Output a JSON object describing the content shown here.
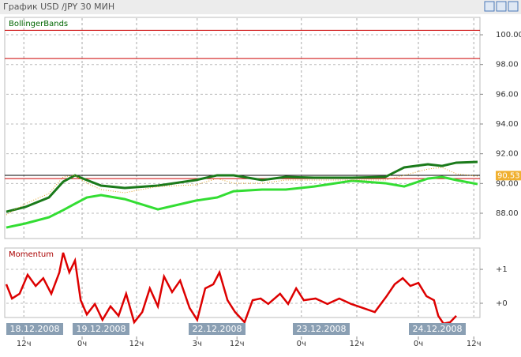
{
  "window": {
    "title": "График USD /JPY  30 МИН"
  },
  "chart_data": [
    {
      "type": "line",
      "title": "BollingerBands",
      "x": [
        0,
        4,
        9,
        12,
        14.5,
        17,
        20,
        25,
        32,
        40,
        44.5,
        48,
        54,
        59,
        65,
        73,
        80,
        84,
        89,
        92,
        95,
        99.5
      ],
      "series": [
        {
          "color": "#1a7a1a",
          "values": [
            88.1,
            88.42,
            89.06,
            90.12,
            90.55,
            90.23,
            89.86,
            89.7,
            89.86,
            90.23,
            90.55,
            90.55,
            90.23,
            90.44,
            90.39,
            90.39,
            90.44,
            91.08,
            91.29,
            91.18,
            91.4,
            91.45
          ]
        },
        {
          "color": "#33dd33",
          "values": [
            87.04,
            87.31,
            87.73,
            88.21,
            88.64,
            89.06,
            89.22,
            88.95,
            88.26,
            88.85,
            89.06,
            89.48,
            89.59,
            89.59,
            89.8,
            90.18,
            90.02,
            89.8,
            90.33,
            90.44,
            90.23,
            89.96
          ]
        },
        {
          "color": "#e0a020",
          "values": [
            87.89,
            88.64,
            89.33,
            90.44,
            90.55,
            90.02,
            89.59,
            89.38,
            89.8,
            89.91,
            90.33,
            90.02,
            90.02,
            90.23,
            90.23,
            90.23,
            90.23,
            90.55,
            90.97,
            91.08,
            90.65,
            90.49
          ]
        }
      ],
      "xlim": [
        0,
        100
      ],
      "ylim": [
        86.3,
        101.17
      ],
      "yticks": [
        {
          "value": 88,
          "label": "88.00"
        },
        {
          "value": 90,
          "label": "90.00"
        },
        {
          "value": 92,
          "label": "92.00"
        },
        {
          "value": 94,
          "label": "94.00"
        },
        {
          "value": 96,
          "label": "96.00"
        },
        {
          "value": 98,
          "label": "98.00"
        },
        {
          "value": 100,
          "label": "100.00"
        }
      ],
      "levels": [
        {
          "value": 100.3,
          "color": "#cc0000"
        },
        {
          "value": 98.4,
          "color": "#cc0000"
        },
        {
          "value": 90.55,
          "color": "#000000"
        },
        {
          "value": 90.33,
          "color": "#cc0000"
        }
      ],
      "last_value": 90.53,
      "grid": true
    },
    {
      "type": "line",
      "title": "Momentum",
      "x": [
        0,
        1.2,
        2.8,
        4.5,
        6.2,
        7.8,
        9.5,
        11.2,
        12,
        13.3,
        14.5,
        15.7,
        17,
        18.7,
        20.3,
        22,
        23.7,
        25.3,
        27,
        28.7,
        30.3,
        32,
        33.3,
        35,
        36.7,
        38.7,
        40.3,
        42,
        43.7,
        45,
        46.7,
        48.3,
        50.3,
        52,
        53.7,
        55.3,
        57.8,
        59.5,
        61.2,
        62.8,
        65.3,
        67.8,
        70.3,
        72.8,
        75.3,
        77.8,
        80.3,
        82,
        83.7,
        85.3,
        87,
        88.7,
        90.3,
        91.2,
        92.3,
        93.7,
        95
      ],
      "series": [
        {
          "color": "#dd0000",
          "values": [
            0.56,
            0.14,
            0.28,
            0.84,
            0.51,
            0.74,
            0.28,
            0.91,
            1.49,
            0.91,
            1.26,
            0.09,
            -0.33,
            -0.02,
            -0.49,
            -0.09,
            -0.37,
            0.28,
            -0.56,
            -0.26,
            0.44,
            -0.09,
            0.79,
            0.33,
            0.67,
            -0.14,
            -0.49,
            0.44,
            0.56,
            0.91,
            0.09,
            -0.26,
            -0.56,
            0.09,
            0.14,
            -0.02,
            0.28,
            -0.02,
            0.44,
            0.09,
            0.14,
            -0.02,
            0.14,
            -0.02,
            -0.14,
            -0.26,
            0.21,
            0.56,
            0.74,
            0.51,
            0.6,
            0.21,
            0.09,
            -0.37,
            -0.6,
            -0.56,
            -0.37
          ]
        }
      ],
      "xlim": [
        0,
        100
      ],
      "ylim": [
        -0.42,
        1.63
      ],
      "yticks": [
        {
          "value": 1,
          "label": "+1"
        },
        {
          "value": 0,
          "label": "+0"
        }
      ],
      "xticks": [
        {
          "value": 3.7,
          "label": "12ч"
        },
        {
          "value": 16,
          "label": "0ч"
        },
        {
          "value": 27.5,
          "label": "12ч"
        },
        {
          "value": 40.3,
          "label": "3ч"
        },
        {
          "value": 48.7,
          "label": "12ч"
        },
        {
          "value": 62.3,
          "label": "0ч"
        },
        {
          "value": 74,
          "label": "12ч"
        },
        {
          "value": 87,
          "label": "0ч"
        },
        {
          "value": 98.7,
          "label": "12ч"
        }
      ],
      "date_ticks": [
        {
          "value": 6,
          "label": "18.12.2008"
        },
        {
          "value": 20,
          "label": "19.12.2008"
        },
        {
          "value": 44.5,
          "label": "22.12.2008"
        },
        {
          "value": 66.5,
          "label": "23.12.2008"
        },
        {
          "value": 91,
          "label": "24.12.2008"
        }
      ],
      "grid": true
    }
  ]
}
